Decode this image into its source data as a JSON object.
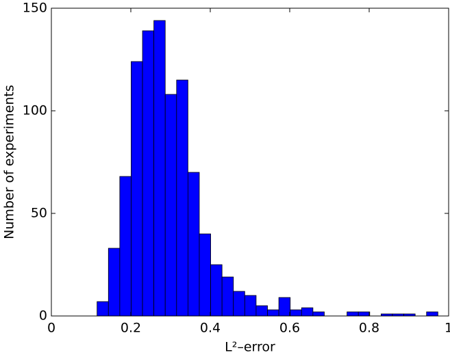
{
  "chart_data": {
    "type": "histogram",
    "xlabel": "L²–error",
    "ylabel": "Number of experiments",
    "bins": [
      0.115,
      0.1436,
      0.1722,
      0.2008,
      0.2294,
      0.258,
      0.2866,
      0.3152,
      0.3438,
      0.3724,
      0.401,
      0.4296,
      0.4582,
      0.4868,
      0.5154,
      0.544,
      0.5726,
      0.6012,
      0.6298,
      0.6584,
      0.687,
      0.7156,
      0.7442,
      0.7728,
      0.8014,
      0.83,
      0.8586,
      0.8872,
      0.9158,
      0.9444,
      0.973
    ],
    "values": [
      7,
      33,
      68,
      124,
      139,
      144,
      108,
      115,
      70,
      40,
      25,
      19,
      12,
      10,
      5,
      3,
      9,
      3,
      4,
      2,
      0,
      0,
      2,
      2,
      0,
      1,
      1,
      1,
      0,
      2
    ],
    "color": "#0000ff",
    "xlim": [
      0,
      1
    ],
    "xticks": [
      0,
      0.2,
      0.4,
      0.6,
      0.8,
      1
    ],
    "ylim": [
      0,
      150
    ],
    "yticks": [
      0,
      50,
      100,
      150
    ]
  }
}
